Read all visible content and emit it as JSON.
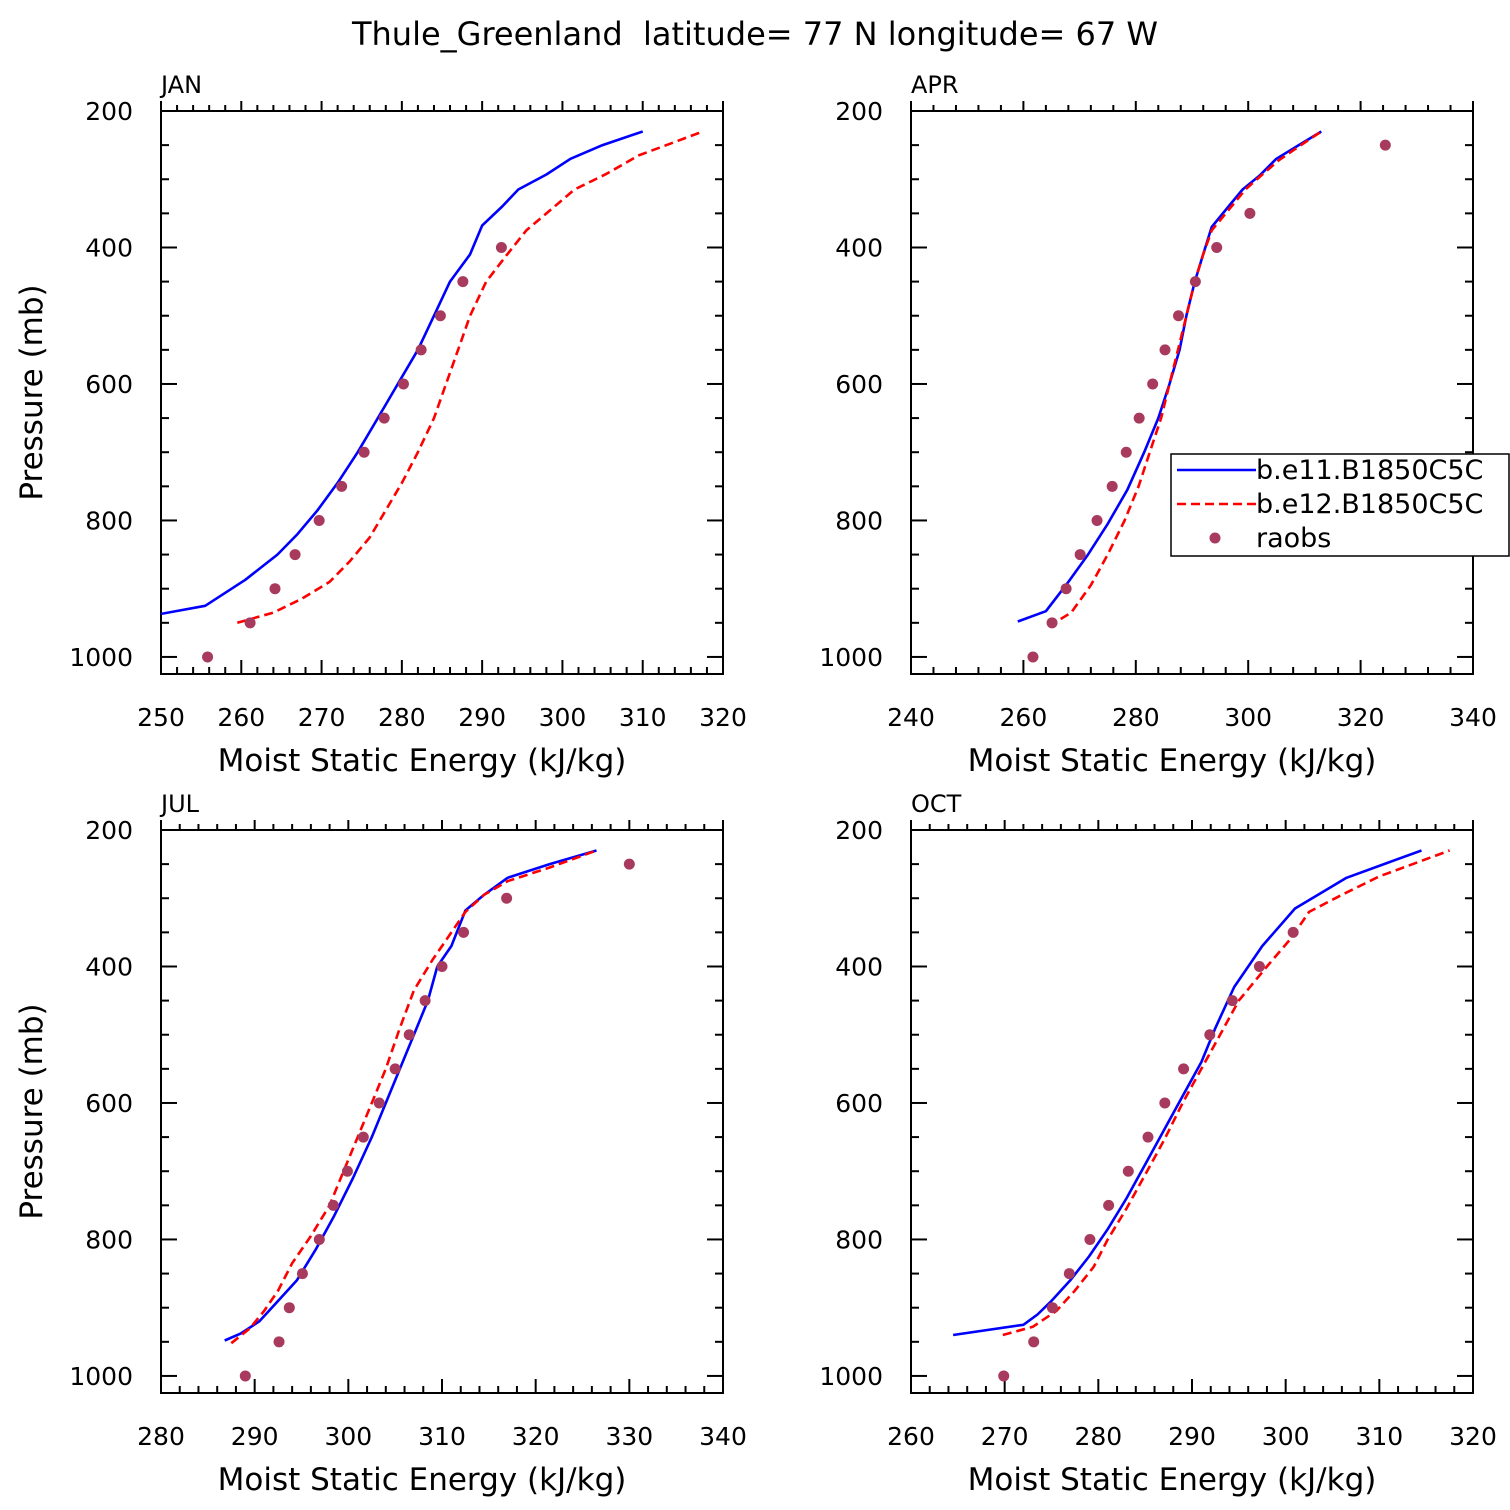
{
  "figure_title": "Thule_Greenland  latitude= 77 N longitude= 67 W",
  "colors": {
    "model1": "#0000ff",
    "model2": "#ff0000",
    "obs": "#a83a5e",
    "frame": "#000000"
  },
  "legend": [
    {
      "label": "b.e11.B1850C5C",
      "style": "solid"
    },
    {
      "label": "b.e12.B1850C5C",
      "style": "dashed"
    },
    {
      "label": "raobs",
      "style": "dot"
    }
  ],
  "chart_data": [
    {
      "type": "line",
      "title": "JAN",
      "xlabel": "Moist Static Energy (kJ/kg)",
      "ylabel": "Pressure (mb)",
      "xlim": [
        250,
        320
      ],
      "ylim": [
        1025,
        200
      ],
      "xticks": [
        250,
        260,
        270,
        280,
        290,
        300,
        310,
        320
      ],
      "yticks": [
        200,
        400,
        600,
        800,
        1000
      ],
      "series": [
        {
          "name": "b.e11.B1850C5C",
          "style": "solid",
          "points": [
            [
              250,
              937
            ],
            [
              255.5,
              925
            ],
            [
              260.5,
              887
            ],
            [
              264.5,
              850
            ],
            [
              267,
              820
            ],
            [
              269.5,
              785
            ],
            [
              272,
              745
            ],
            [
              274.5,
              700
            ],
            [
              277,
              650
            ],
            [
              279.5,
              600
            ],
            [
              282,
              550
            ],
            [
              284,
              500
            ],
            [
              286,
              450
            ],
            [
              288.5,
              410
            ],
            [
              290,
              368
            ],
            [
              292.5,
              340
            ],
            [
              294.5,
              315
            ],
            [
              298,
              293
            ],
            [
              301,
              270
            ],
            [
              305,
              250
            ],
            [
              310,
              230
            ]
          ]
        },
        {
          "name": "b.e12.B1850C5C",
          "style": "dashed",
          "points": [
            [
              259.5,
              950
            ],
            [
              264,
              935
            ],
            [
              267.5,
              915
            ],
            [
              271,
              890
            ],
            [
              273.5,
              860
            ],
            [
              276,
              825
            ],
            [
              278,
              785
            ],
            [
              280,
              745
            ],
            [
              282,
              700
            ],
            [
              284,
              650
            ],
            [
              285.5,
              600
            ],
            [
              287,
              550
            ],
            [
              288.5,
              500
            ],
            [
              290.5,
              450
            ],
            [
              293,
              412
            ],
            [
              295.5,
              375
            ],
            [
              298.5,
              345
            ],
            [
              301.5,
              315
            ],
            [
              305.5,
              292
            ],
            [
              309.5,
              265
            ],
            [
              317.5,
              230
            ]
          ]
        },
        {
          "name": "raobs",
          "style": "dot",
          "points": [
            [
              255.8,
              1000
            ],
            [
              261.1,
              950
            ],
            [
              264.2,
              900
            ],
            [
              266.7,
              850
            ],
            [
              269.7,
              800
            ],
            [
              272.5,
              750
            ],
            [
              275.3,
              700
            ],
            [
              277.8,
              650
            ],
            [
              280.2,
              600
            ],
            [
              282.4,
              550
            ],
            [
              284.8,
              500
            ],
            [
              287.6,
              450
            ],
            [
              292.4,
              400
            ]
          ]
        }
      ]
    },
    {
      "type": "line",
      "title": "APR",
      "xlabel": "Moist Static Energy (kJ/kg)",
      "ylabel": "",
      "xlim": [
        240,
        340
      ],
      "ylim": [
        1025,
        200
      ],
      "xticks": [
        240,
        260,
        280,
        300,
        320,
        340
      ],
      "yticks": [
        200,
        400,
        600,
        800,
        1000
      ],
      "series": [
        {
          "name": "b.e11.B1850C5C",
          "style": "solid",
          "points": [
            [
              259,
              948
            ],
            [
              264,
              933
            ],
            [
              268,
              890
            ],
            [
              271.5,
              850
            ],
            [
              275,
              805
            ],
            [
              278.5,
              755
            ],
            [
              281.5,
              700
            ],
            [
              284,
              650
            ],
            [
              286,
              600
            ],
            [
              287.8,
              550
            ],
            [
              289,
              500
            ],
            [
              290.5,
              450
            ],
            [
              292,
              410
            ],
            [
              293.5,
              370
            ],
            [
              296.5,
              340
            ],
            [
              299,
              315
            ],
            [
              302,
              295
            ],
            [
              305,
              270
            ],
            [
              309,
              250
            ],
            [
              313,
              230
            ]
          ]
        },
        {
          "name": "b.e12.B1850C5C",
          "style": "dashed",
          "points": [
            [
              264.5,
              955
            ],
            [
              268.5,
              935
            ],
            [
              272,
              895
            ],
            [
              275,
              850
            ],
            [
              278,
              800
            ],
            [
              280.5,
              750
            ],
            [
              282.5,
              700
            ],
            [
              284.5,
              650
            ],
            [
              286,
              600
            ],
            [
              287.5,
              550
            ],
            [
              289,
              500
            ],
            [
              290.5,
              450
            ],
            [
              292,
              410
            ],
            [
              293.5,
              375
            ],
            [
              296.5,
              345
            ],
            [
              299.5,
              315
            ],
            [
              302.5,
              293
            ],
            [
              305.5,
              272
            ],
            [
              309,
              252
            ],
            [
              313,
              230
            ]
          ]
        },
        {
          "name": "raobs",
          "style": "dot",
          "points": [
            [
              261.7,
              1000
            ],
            [
              265.1,
              950
            ],
            [
              267.6,
              900
            ],
            [
              270.1,
              850
            ],
            [
              273.1,
              800
            ],
            [
              275.8,
              750
            ],
            [
              278.3,
              700
            ],
            [
              280.6,
              650
            ],
            [
              283,
              600
            ],
            [
              285.2,
              550
            ],
            [
              287.6,
              500
            ],
            [
              290.6,
              450
            ],
            [
              294.4,
              400
            ],
            [
              300.3,
              350
            ],
            [
              324.4,
              250
            ]
          ]
        }
      ]
    },
    {
      "type": "line",
      "title": "JUL",
      "xlabel": "Moist Static Energy (kJ/kg)",
      "ylabel": "Pressure (mb)",
      "xlim": [
        280,
        340
      ],
      "ylim": [
        1025,
        200
      ],
      "xticks": [
        280,
        290,
        300,
        310,
        320,
        330,
        340
      ],
      "yticks": [
        200,
        400,
        600,
        800,
        1000
      ],
      "series": [
        {
          "name": "b.e11.B1850C5C",
          "style": "solid",
          "points": [
            [
              286.8,
              948
            ],
            [
              288.5,
              938
            ],
            [
              290.5,
              920
            ],
            [
              292.5,
              890
            ],
            [
              294.5,
              860
            ],
            [
              296.5,
              815
            ],
            [
              298.5,
              765
            ],
            [
              300.5,
              710
            ],
            [
              302.5,
              650
            ],
            [
              304,
              600
            ],
            [
              305.5,
              550
            ],
            [
              307,
              500
            ],
            [
              308.5,
              450
            ],
            [
              309.5,
              400
            ],
            [
              311,
              370
            ],
            [
              312.5,
              318
            ],
            [
              314.5,
              295
            ],
            [
              317,
              270
            ],
            [
              321.5,
              250
            ],
            [
              326.5,
              230
            ]
          ]
        },
        {
          "name": "b.e12.B1850C5C",
          "style": "dashed",
          "points": [
            [
              287.5,
              952
            ],
            [
              289.5,
              930
            ],
            [
              291,
              905
            ],
            [
              292.5,
              875
            ],
            [
              294,
              835
            ],
            [
              296,
              795
            ],
            [
              298,
              750
            ],
            [
              299.5,
              700
            ],
            [
              301,
              650
            ],
            [
              302.5,
              600
            ],
            [
              304,
              550
            ],
            [
              305.5,
              490
            ],
            [
              307,
              435
            ],
            [
              309,
              390
            ],
            [
              310.5,
              360
            ],
            [
              312.5,
              320
            ],
            [
              314.5,
              295
            ],
            [
              317,
              275
            ],
            [
              321.5,
              255
            ],
            [
              326.5,
              230
            ]
          ]
        },
        {
          "name": "raobs",
          "style": "dot",
          "points": [
            [
              289,
              1000
            ],
            [
              292.6,
              950
            ],
            [
              293.7,
              900
            ],
            [
              295.1,
              850
            ],
            [
              296.9,
              800
            ],
            [
              298.4,
              750
            ],
            [
              299.9,
              700
            ],
            [
              301.6,
              650
            ],
            [
              303.3,
              600
            ],
            [
              305,
              550
            ],
            [
              306.5,
              500
            ],
            [
              308.2,
              450
            ],
            [
              310,
              400
            ],
            [
              312.3,
              350
            ],
            [
              316.9,
              300
            ],
            [
              330,
              250
            ]
          ]
        }
      ]
    },
    {
      "type": "line",
      "title": "OCT",
      "xlabel": "Moist Static Energy (kJ/kg)",
      "ylabel": "",
      "xlim": [
        260,
        320
      ],
      "ylim": [
        1025,
        200
      ],
      "xticks": [
        260,
        270,
        280,
        290,
        300,
        310,
        320
      ],
      "yticks": [
        200,
        400,
        600,
        800,
        1000
      ],
      "series": [
        {
          "name": "b.e11.B1850C5C",
          "style": "solid",
          "points": [
            [
              264.5,
              940
            ],
            [
              272,
              925
            ],
            [
              273.5,
              910
            ],
            [
              275,
              890
            ],
            [
              277,
              860
            ],
            [
              279,
              825
            ],
            [
              281,
              785
            ],
            [
              283,
              740
            ],
            [
              285,
              690
            ],
            [
              287,
              640
            ],
            [
              289,
              590
            ],
            [
              291,
              540
            ],
            [
              292.5,
              490
            ],
            [
              294.5,
              430
            ],
            [
              297.5,
              370
            ],
            [
              301,
              315
            ],
            [
              306.5,
              270
            ],
            [
              310.5,
              250
            ],
            [
              314.5,
              230
            ]
          ]
        },
        {
          "name": "b.e12.B1850C5C",
          "style": "dashed",
          "points": [
            [
              269.8,
              940
            ],
            [
              273,
              928
            ],
            [
              275.5,
              905
            ],
            [
              277.5,
              875
            ],
            [
              279.5,
              840
            ],
            [
              281,
              800
            ],
            [
              283,
              755
            ],
            [
              285,
              705
            ],
            [
              287,
              655
            ],
            [
              289,
              600
            ],
            [
              291,
              550
            ],
            [
              293,
              500
            ],
            [
              295,
              450
            ],
            [
              298,
              400
            ],
            [
              300.5,
              360
            ],
            [
              302.5,
              320
            ],
            [
              306,
              295
            ],
            [
              310,
              268
            ],
            [
              317.5,
              230
            ]
          ]
        },
        {
          "name": "raobs",
          "style": "dot",
          "points": [
            [
              269.9,
              1000
            ],
            [
              273.1,
              950
            ],
            [
              275.1,
              900
            ],
            [
              276.9,
              850
            ],
            [
              279.1,
              800
            ],
            [
              281.1,
              750
            ],
            [
              283.2,
              700
            ],
            [
              285.3,
              650
            ],
            [
              287.1,
              600
            ],
            [
              289.1,
              550
            ],
            [
              291.9,
              500
            ],
            [
              294.3,
              450
            ],
            [
              297.2,
              400
            ],
            [
              300.8,
              350
            ]
          ]
        }
      ]
    }
  ]
}
